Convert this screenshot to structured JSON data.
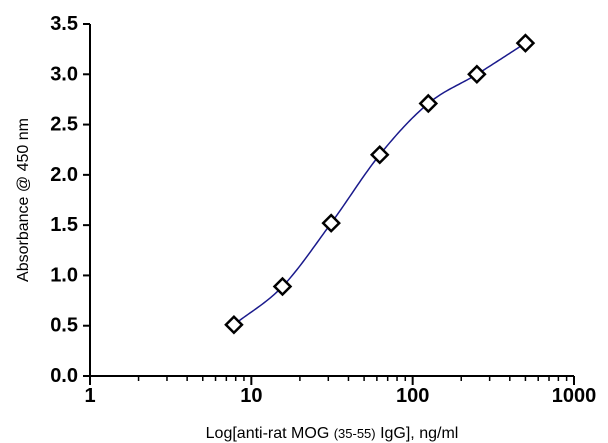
{
  "chart_data": {
    "type": "scatter",
    "title": "",
    "x_scale": "log",
    "xlim": [
      1,
      1000
    ],
    "ylim": [
      0,
      3.5
    ],
    "x_ticks": [
      "1",
      "10",
      "100",
      "1000"
    ],
    "y_ticks": [
      "0.0",
      "0.5",
      "1.0",
      "1.5",
      "2.0",
      "2.5",
      "3.0",
      "3.5"
    ],
    "xlabel": {
      "prefix": "Log[anti-rat MOG ",
      "small": "(35-55)",
      "suffix": " IgG], ng/ml"
    },
    "ylabel": "Absorbance @ 450 nm",
    "grid": false,
    "legend": "none",
    "series": [
      {
        "x": [
          7.8,
          15.6,
          31.25,
          62.5,
          125,
          250,
          500
        ],
        "y": [
          0.51,
          0.89,
          1.52,
          2.2,
          2.71,
          3.0,
          3.31
        ],
        "marker": "diamond-open",
        "marker_color": "#000000",
        "fit_color": "#1a1a8c"
      }
    ]
  }
}
